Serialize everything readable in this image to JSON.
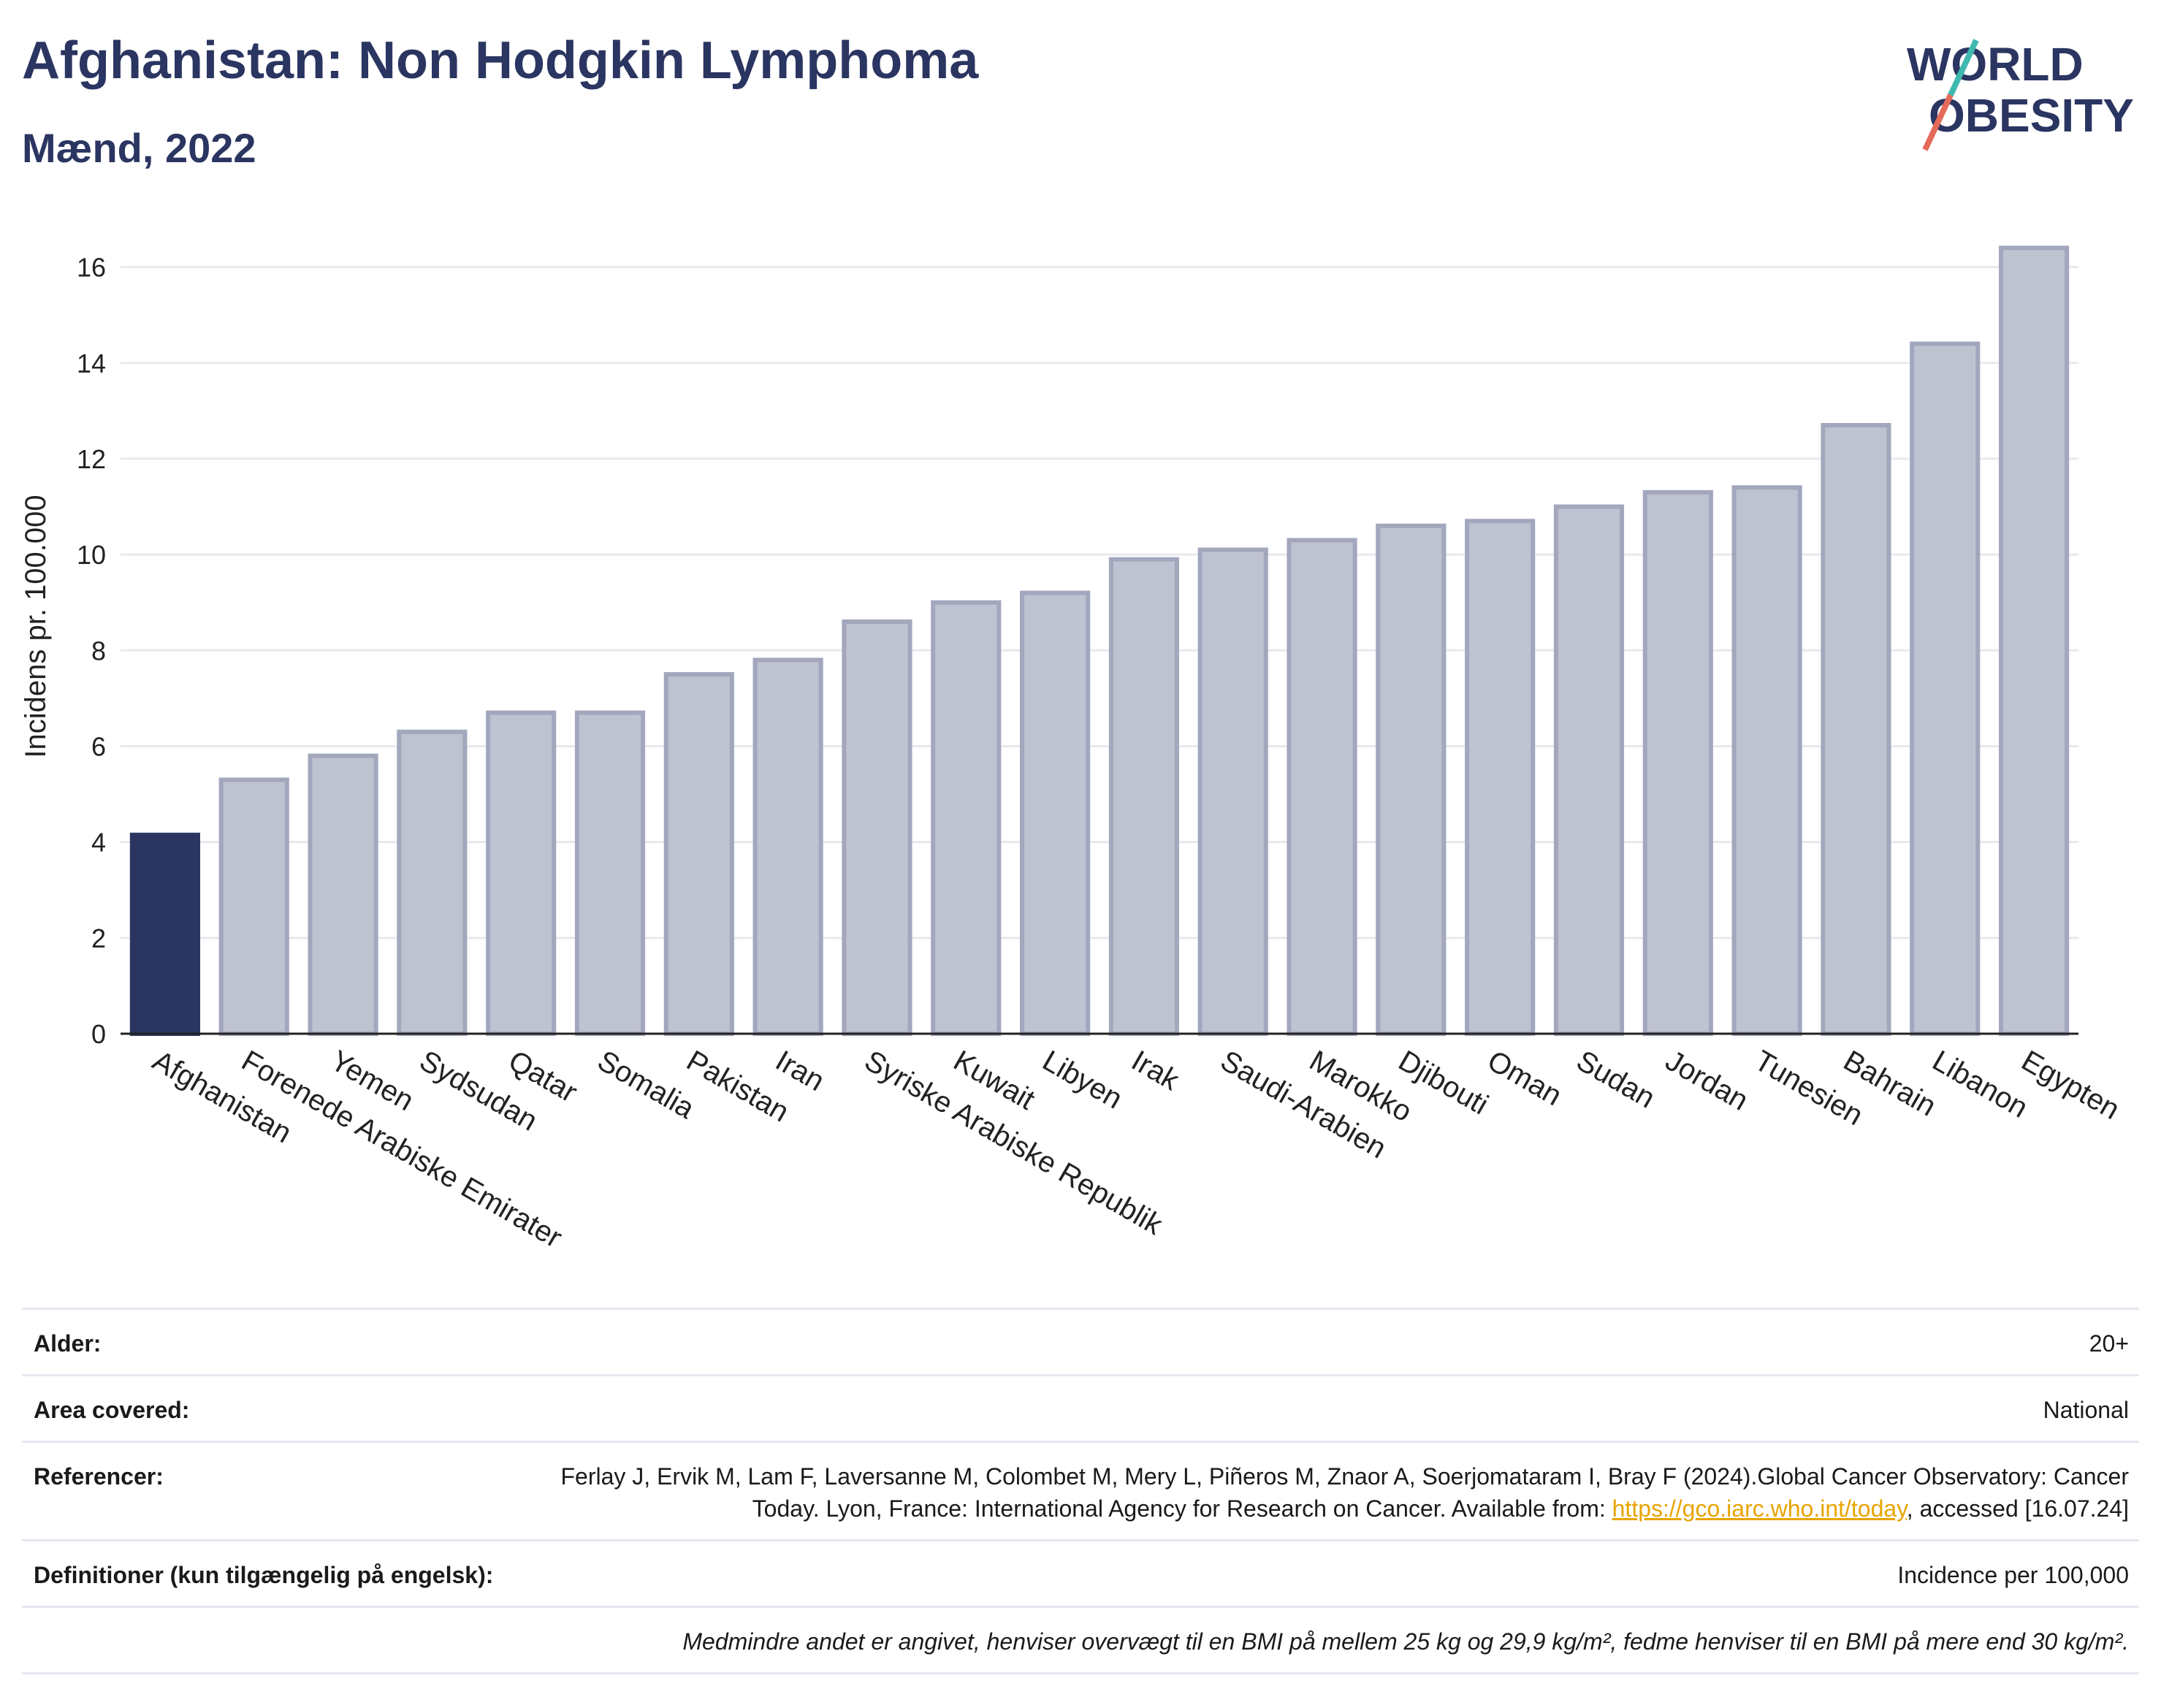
{
  "header": {
    "title": "Afghanistan: Non Hodgkin Lymphoma",
    "subtitle": "Mænd, 2022"
  },
  "logo": {
    "line1": "WORLD",
    "line2": "OBESITY"
  },
  "colors": {
    "highlight": "#2b3561",
    "bar_fill": "#bfc2d0",
    "bar_stroke": "#a2a7bd",
    "accent_teal": "#3fb8b0",
    "accent_red": "#e46a5a"
  },
  "chart_data": {
    "type": "bar",
    "ylabel": "Incidens pr. 100.000",
    "xlabel": "",
    "ylim": [
      0,
      17
    ],
    "yticks": [
      0,
      2,
      4,
      6,
      8,
      10,
      12,
      14,
      16
    ],
    "grid": true,
    "highlight": "Afghanistan",
    "categories": [
      "Afghanistan",
      "Forenede Arabiske Emirater",
      "Yemen",
      "Sydsudan",
      "Qatar",
      "Somalia",
      "Pakistan",
      "Iran",
      "Syriske Arabiske Republik",
      "Kuwait",
      "Libyen",
      "Irak",
      "Saudi-Arabien",
      "Marokko",
      "Djibouti",
      "Oman",
      "Sudan",
      "Jordan",
      "Tunesien",
      "Bahrain",
      "Libanon",
      "Egypten"
    ],
    "values": [
      4.15,
      5.3,
      5.8,
      6.3,
      6.7,
      6.7,
      7.5,
      7.8,
      8.6,
      9.0,
      9.2,
      9.9,
      10.1,
      10.3,
      10.6,
      10.7,
      11.0,
      11.3,
      11.4,
      12.7,
      14.4,
      16.4
    ]
  },
  "info": {
    "age_label": "Alder:",
    "age_value": "20+",
    "area_label": "Area covered:",
    "area_value": "National",
    "ref_label": "Referencer:",
    "ref_text": "Ferlay J, Ervik M, Lam F, Laversanne M, Colombet M, Mery L, Piñeros M, Znaor A, Soerjomataram I, Bray F (2024).Global Cancer Observatory: Cancer Today. Lyon, France: International Agency for Research on Cancer. Available from: ",
    "ref_link": "https://gco.iarc.who.int/today",
    "ref_tail": ", accessed [16.07.24]",
    "def_label": "Definitioner (kun tilgængelig på engelsk):",
    "def_value": "Incidence per 100,000",
    "note": "Medmindre andet er angivet, henviser overvægt til en BMI på mellem 25 kg og 29,9 kg/m², fedme henviser til en BMI på mere end 30 kg/m²."
  }
}
